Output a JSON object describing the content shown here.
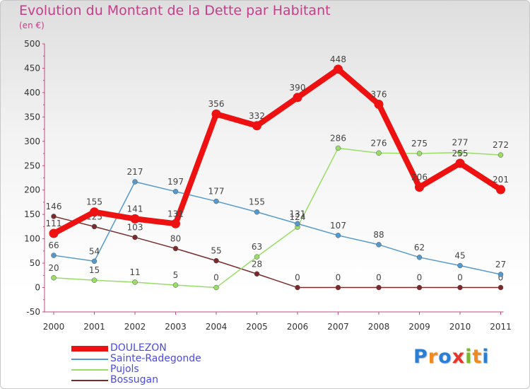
{
  "chart_data": {
    "type": "line",
    "title": "Evolution du Montant de la Dette par Habitant",
    "subtitle": "(en €)",
    "xlabel": "",
    "ylabel": "",
    "categories": [
      "2000",
      "2001",
      "2002",
      "2003",
      "2004",
      "2005",
      "2006",
      "2007",
      "2008",
      "2009",
      "2010",
      "2011"
    ],
    "ylim": [
      -50,
      500
    ],
    "yticks": [
      -50,
      0,
      50,
      100,
      150,
      200,
      250,
      300,
      350,
      400,
      450,
      500
    ],
    "grid": false,
    "legend_position": "bottom-left",
    "series": [
      {
        "name": "DOULEZON",
        "color": "#ee1111",
        "values": [
          111,
          155,
          141,
          131,
          356,
          332,
          390,
          448,
          376,
          206,
          255,
          201
        ]
      },
      {
        "name": "Sainte-Radegonde",
        "color": "#5599cc",
        "values": [
          66,
          54,
          217,
          197,
          177,
          155,
          131,
          107,
          88,
          62,
          45,
          27
        ]
      },
      {
        "name": "Pujols",
        "color": "#99dd66",
        "values": [
          20,
          15,
          11,
          5,
          0,
          63,
          124,
          286,
          276,
          275,
          277,
          272
        ]
      },
      {
        "name": "Bossugan",
        "color": "#7a2a2a",
        "values": [
          146,
          125,
          103,
          80,
          55,
          28,
          0,
          0,
          0,
          0,
          0,
          0
        ]
      }
    ]
  },
  "brand": {
    "letters": [
      "P",
      "r",
      "o",
      "x",
      "i",
      "t",
      "i"
    ],
    "colors": [
      "#2a7fd4",
      "#f08a1c",
      "#2a7fd4",
      "#e8352b",
      "#7ab82e",
      "#f08a1c",
      "#2a7fd4"
    ]
  }
}
